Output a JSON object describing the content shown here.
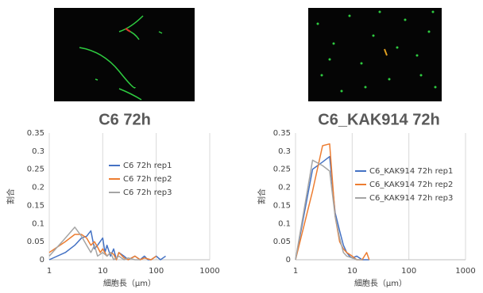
{
  "chart_data": [
    {
      "type": "line",
      "title": "C6 72h",
      "xlabel": "細胞長（μm）",
      "ylabel": "割合",
      "xscale": "log",
      "xlim": [
        1,
        1000
      ],
      "xticks": [
        1,
        10,
        100,
        1000
      ],
      "ylim": [
        0,
        0.35
      ],
      "yticks": [
        0,
        0.05,
        0.1,
        0.15,
        0.2,
        0.25,
        0.3,
        0.35
      ],
      "xgrid": true,
      "legend": "right",
      "series": [
        {
          "name": "C6 72h rep1",
          "color": "#4472c4",
          "x": [
            1,
            2,
            3,
            4,
            5,
            6,
            7,
            8,
            10,
            11,
            12,
            14,
            16,
            18,
            20,
            25,
            30,
            40,
            50,
            60,
            70,
            80,
            100,
            120,
            150
          ],
          "values": [
            0,
            0.02,
            0.04,
            0.06,
            0.065,
            0.08,
            0.03,
            0.04,
            0.06,
            0.02,
            0.04,
            0.01,
            0.03,
            0,
            0.02,
            0.01,
            0,
            0.01,
            0,
            0.01,
            0,
            0,
            0.01,
            0,
            0.01
          ]
        },
        {
          "name": "C6 72h rep2",
          "color": "#ed7d31",
          "x": [
            1,
            2,
            3,
            4,
            5,
            6,
            7,
            8,
            9,
            10,
            12,
            14,
            16,
            18,
            20,
            25,
            30,
            40,
            50,
            60,
            80,
            100
          ],
          "values": [
            0.02,
            0.05,
            0.07,
            0.07,
            0.06,
            0.04,
            0.05,
            0.035,
            0.02,
            0.03,
            0.01,
            0.02,
            0.015,
            0,
            0.02,
            0.005,
            0,
            0.01,
            0,
            0.005,
            0,
            0.01
          ]
        },
        {
          "name": "C6 72h rep3",
          "color": "#a5a5a5",
          "x": [
            1,
            2,
            3,
            4,
            5,
            6,
            7,
            8,
            10,
            12,
            14,
            16,
            20,
            25,
            30,
            40,
            50
          ],
          "values": [
            0.01,
            0.06,
            0.09,
            0.065,
            0.04,
            0.02,
            0.04,
            0.01,
            0.02,
            0.01,
            0.02,
            0,
            0.01,
            0,
            0.005,
            0,
            0
          ]
        }
      ]
    },
    {
      "type": "line",
      "title": "C6_KAK914 72h",
      "xlabel": "細胞長（μm）",
      "ylabel": "割合",
      "xscale": "log",
      "xlim": [
        1,
        1000
      ],
      "xticks": [
        1,
        10,
        100,
        1000
      ],
      "ylim": [
        0,
        0.35
      ],
      "yticks": [
        0,
        0.05,
        0.1,
        0.15,
        0.2,
        0.25,
        0.3,
        0.35
      ],
      "xgrid": true,
      "legend": "right",
      "series": [
        {
          "name": "C6_KAK914 72h rep1",
          "color": "#4472c4",
          "x": [
            1,
            2,
            3,
            4,
            5,
            6,
            7,
            8,
            9,
            10,
            12,
            15,
            20
          ],
          "values": [
            0,
            0.25,
            0.27,
            0.285,
            0.13,
            0.08,
            0.04,
            0.02,
            0.01,
            0.005,
            0.01,
            0,
            0
          ]
        },
        {
          "name": "C6_KAK914 72h rep2",
          "color": "#ed7d31",
          "x": [
            1,
            2,
            3,
            4,
            5,
            6,
            7,
            8,
            10,
            12,
            15,
            18,
            20
          ],
          "values": [
            0,
            0.19,
            0.315,
            0.32,
            0.12,
            0.05,
            0.03,
            0.02,
            0.01,
            0,
            0,
            0.02,
            0
          ]
        },
        {
          "name": "C6_KAK914 72h rep3",
          "color": "#a5a5a5",
          "x": [
            1,
            2,
            3,
            4,
            5,
            6,
            7,
            8,
            10,
            12,
            15
          ],
          "values": [
            0,
            0.275,
            0.26,
            0.245,
            0.12,
            0.06,
            0.02,
            0.01,
            0.005,
            0,
            0
          ]
        }
      ]
    }
  ]
}
